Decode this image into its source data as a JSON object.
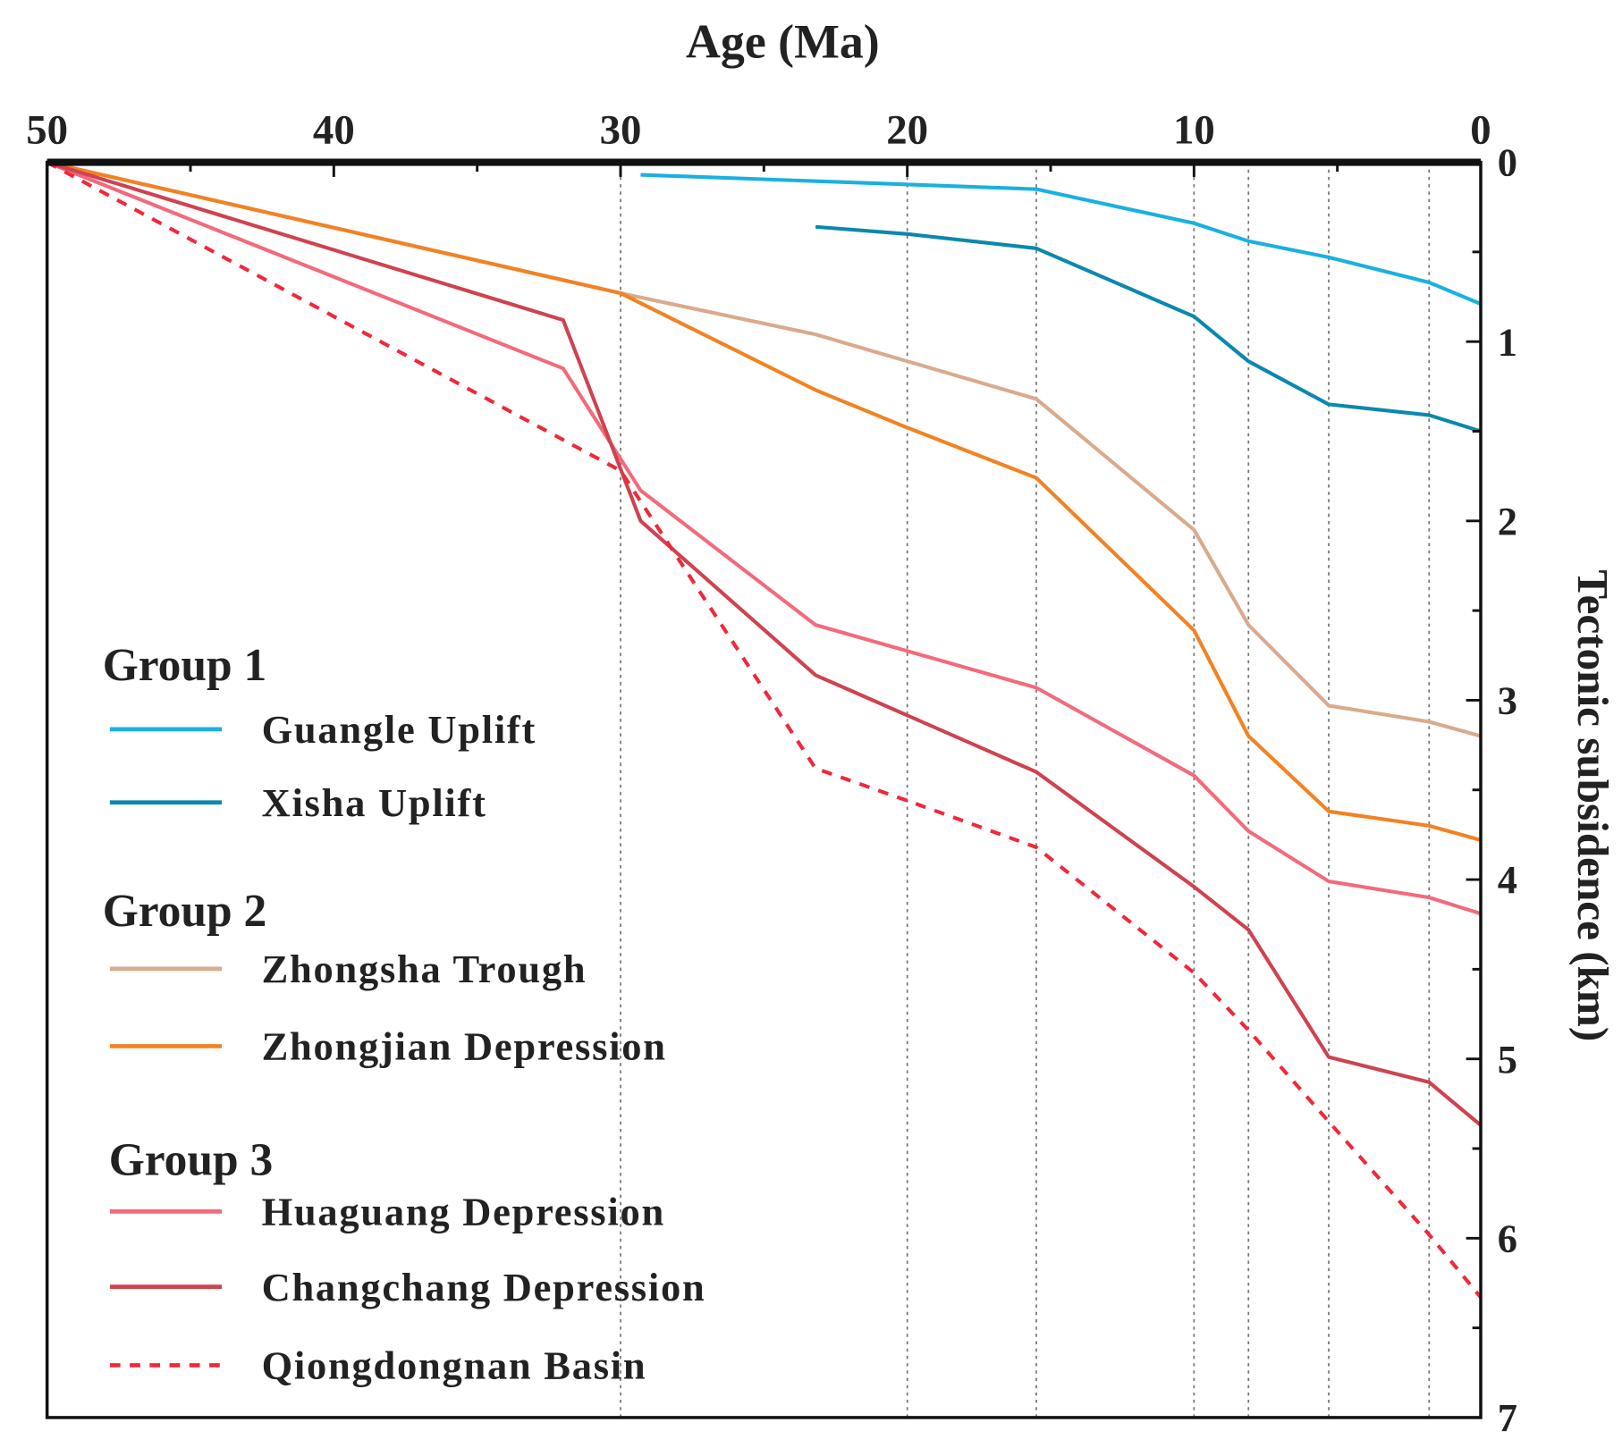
{
  "chart_data": {
    "type": "line",
    "xlabel": "Age (Ma)",
    "ylabel": "Tectonic subsidence (km)",
    "xlim": [
      50,
      0
    ],
    "ylim": [
      0,
      7
    ],
    "x_ticks": [
      50,
      40,
      30,
      20,
      10,
      0
    ],
    "y_ticks": [
      0,
      1,
      2,
      3,
      4,
      5,
      6,
      7
    ],
    "reference_lines_x": [
      30,
      20,
      15.5,
      10,
      8.1,
      5.3,
      1.8
    ],
    "legend_position": "bottom-left",
    "groups": [
      {
        "title": "Group 1",
        "series": [
          0,
          1
        ]
      },
      {
        "title": "Group 2",
        "series": [
          2,
          3
        ]
      },
      {
        "title": "Group 3",
        "series": [
          4,
          5,
          6
        ]
      }
    ],
    "series": [
      {
        "name": "Guangle Uplift",
        "color": "#1ab0e0",
        "dashed": false,
        "x": [
          29.3,
          15.5,
          10,
          8.1,
          5.3,
          1.8,
          0
        ],
        "y": [
          0.07,
          0.15,
          0.34,
          0.44,
          0.53,
          0.67,
          0.79
        ]
      },
      {
        "name": "Xisha Uplift",
        "color": "#0a88ae",
        "dashed": false,
        "x": [
          23.2,
          20,
          15.5,
          10,
          8.1,
          5.3,
          1.8,
          0
        ],
        "y": [
          0.36,
          0.4,
          0.48,
          0.86,
          1.11,
          1.35,
          1.41,
          1.5
        ]
      },
      {
        "name": "Zhongsha Trough",
        "color": "#d9aa8c",
        "dashed": false,
        "x": [
          50,
          30,
          23.2,
          15.5,
          10,
          8.1,
          5.3,
          1.8,
          0
        ],
        "y": [
          0,
          0.73,
          0.96,
          1.32,
          2.05,
          2.58,
          3.03,
          3.12,
          3.2
        ]
      },
      {
        "name": "Zhongjian Depression",
        "color": "#f28222",
        "dashed": false,
        "x": [
          50,
          30,
          23.2,
          20,
          15.5,
          10,
          8.1,
          5.3,
          1.8,
          0
        ],
        "y": [
          0,
          0.73,
          1.27,
          1.48,
          1.76,
          2.61,
          3.2,
          3.62,
          3.7,
          3.78
        ]
      },
      {
        "name": "Huaguang Depression",
        "color": "#f26a7c",
        "dashed": false,
        "x": [
          50,
          32,
          29.3,
          23.2,
          15.5,
          10,
          8.1,
          5.3,
          1.8,
          0
        ],
        "y": [
          0,
          1.15,
          1.83,
          2.58,
          2.93,
          3.42,
          3.73,
          4.01,
          4.1,
          4.19
        ]
      },
      {
        "name": "Changchang Depression",
        "color": "#cf4250",
        "dashed": false,
        "x": [
          50,
          32,
          29.3,
          23.2,
          15.5,
          10,
          8.1,
          5.3,
          1.8,
          0
        ],
        "y": [
          0,
          0.88,
          2.0,
          2.86,
          3.4,
          4.04,
          4.28,
          4.99,
          5.13,
          5.37
        ]
      },
      {
        "name": "Qiongdongnan Basin",
        "color": "#f0283a",
        "dashed": true,
        "x": [
          50,
          30,
          23.2,
          20,
          15.5,
          10,
          8.1,
          5.3,
          1.8,
          0
        ],
        "y": [
          0,
          1.72,
          3.38,
          3.56,
          3.82,
          4.52,
          4.84,
          5.35,
          5.98,
          6.33
        ]
      }
    ]
  }
}
